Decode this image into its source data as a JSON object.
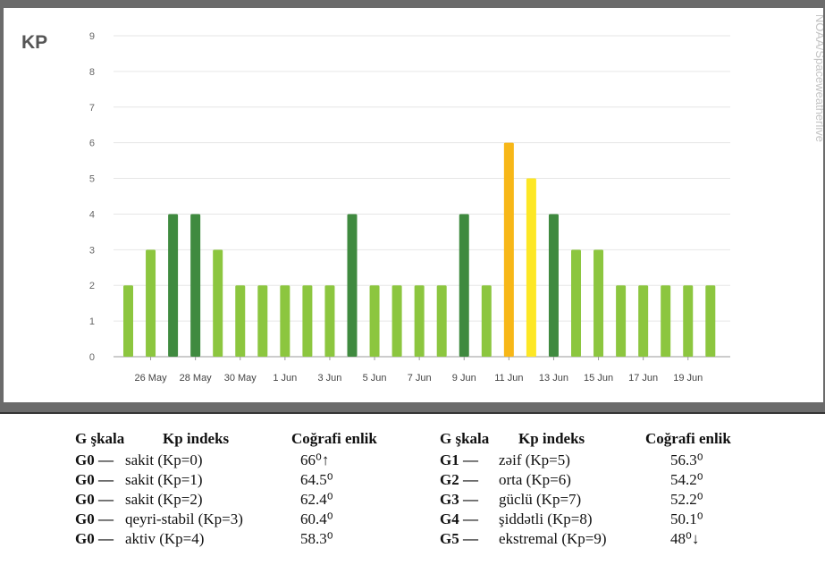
{
  "chart_data": {
    "type": "bar",
    "ylabel": "KP",
    "ylim": [
      0,
      9
    ],
    "yticks": [
      0,
      1,
      2,
      3,
      4,
      5,
      6,
      7,
      8,
      9
    ],
    "categories": [
      "25 May",
      "26 May",
      "27 May",
      "28 May",
      "29 May",
      "30 May",
      "31 May",
      "1 Jun",
      "2 Jun",
      "3 Jun",
      "4 Jun",
      "5 Jun",
      "6 Jun",
      "7 Jun",
      "8 Jun",
      "9 Jun",
      "10 Jun",
      "11 Jun",
      "12 Jun",
      "13 Jun",
      "14 Jun",
      "15 Jun",
      "16 Jun",
      "17 Jun",
      "18 Jun",
      "19 Jun",
      "20 Jun"
    ],
    "tick_labels": [
      "26 May",
      "28 May",
      "30 May",
      "1 Jun",
      "3 Jun",
      "5 Jun",
      "7 Jun",
      "9 Jun",
      "11 Jun",
      "13 Jun",
      "15 Jun",
      "17 Jun",
      "19 Jun"
    ],
    "values": [
      2,
      3,
      4,
      4,
      3,
      2,
      2,
      2,
      2,
      2,
      4,
      2,
      2,
      2,
      2,
      4,
      2,
      6,
      5,
      4,
      3,
      3,
      2,
      2,
      2,
      2,
      2
    ],
    "grid": true,
    "colors": {
      "low": "#8cc63f",
      "active": "#3f8a3f",
      "g1": "#fde725",
      "g2": "#f7b718"
    }
  },
  "credit": "NOAA/Spaceweatherlive",
  "legend": {
    "headers": {
      "g": "G şkala",
      "kp": "Kp indeks",
      "lat": "Coğrafi enlik"
    },
    "left": [
      {
        "g": "G0 —",
        "kp": "sakit (Kp=0)",
        "lat": "66⁰↑"
      },
      {
        "g": "G0 —",
        "kp": "sakit (Kp=1)",
        "lat": "64.5⁰"
      },
      {
        "g": "G0 —",
        "kp": "sakit (Kp=2)",
        "lat": "62.4⁰"
      },
      {
        "g": "G0 —",
        "kp": "qeyri-stabil (Kp=3)",
        "lat": "60.4⁰"
      },
      {
        "g": "G0 —",
        "kp": "aktiv (Kp=4)",
        "lat": "58.3⁰"
      }
    ],
    "right": [
      {
        "g": "G1 —",
        "kp": "zəif (Kp=5)",
        "lat": "56.3⁰"
      },
      {
        "g": "G2 —",
        "kp": "orta (Kp=6)",
        "lat": "54.2⁰"
      },
      {
        "g": "G3 —",
        "kp": "güclü (Kp=7)",
        "lat": "52.2⁰"
      },
      {
        "g": "G4 —",
        "kp": "şiddətli (Kp=8)",
        "lat": "50.1⁰"
      },
      {
        "g": "G5 —",
        "kp": "ekstremal (Kp=9)",
        "lat": "48⁰↓"
      }
    ]
  }
}
